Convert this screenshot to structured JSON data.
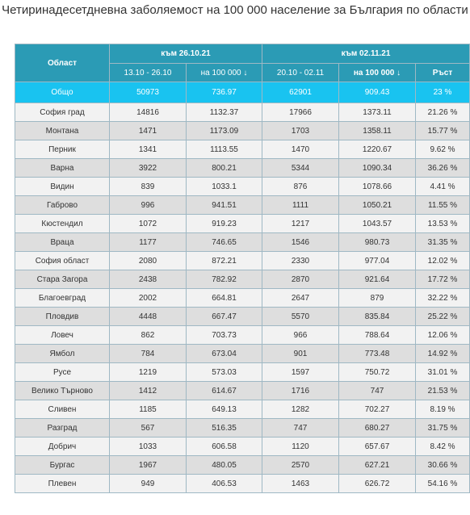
{
  "title": "Четиринадесетдневна заболяемост на 100 000 население за България по области",
  "chart_data": {
    "type": "table",
    "header": {
      "col_region": "Област",
      "group1": "към 26.10.21",
      "group2": "към 02.11.21",
      "sub1": "13.10 - 26.10",
      "sub2": "на 100 000 ↓",
      "sub3": "20.10 - 02.11",
      "sub4": "на 100 000 ↓",
      "sub5": "Ръст"
    },
    "total": {
      "name": "Общо",
      "cases1": "50973",
      "rate1": "736.97",
      "cases2": "62901",
      "rate2": "909.43",
      "growth": "23 %"
    },
    "rows": [
      [
        "София град",
        "14816",
        "1132.37",
        "17966",
        "1373.11",
        "21.26 %"
      ],
      [
        "Монтана",
        "1471",
        "1173.09",
        "1703",
        "1358.11",
        "15.77 %"
      ],
      [
        "Перник",
        "1341",
        "1113.55",
        "1470",
        "1220.67",
        "9.62 %"
      ],
      [
        "Варна",
        "3922",
        "800.21",
        "5344",
        "1090.34",
        "36.26 %"
      ],
      [
        "Видин",
        "839",
        "1033.1",
        "876",
        "1078.66",
        "4.41 %"
      ],
      [
        "Габрово",
        "996",
        "941.51",
        "1111",
        "1050.21",
        "11.55 %"
      ],
      [
        "Кюстендил",
        "1072",
        "919.23",
        "1217",
        "1043.57",
        "13.53 %"
      ],
      [
        "Враца",
        "1177",
        "746.65",
        "1546",
        "980.73",
        "31.35 %"
      ],
      [
        "София област",
        "2080",
        "872.21",
        "2330",
        "977.04",
        "12.02 %"
      ],
      [
        "Стара Загора",
        "2438",
        "782.92",
        "2870",
        "921.64",
        "17.72 %"
      ],
      [
        "Благоевград",
        "2002",
        "664.81",
        "2647",
        "879",
        "32.22 %"
      ],
      [
        "Пловдив",
        "4448",
        "667.47",
        "5570",
        "835.84",
        "25.22 %"
      ],
      [
        "Ловеч",
        "862",
        "703.73",
        "966",
        "788.64",
        "12.06 %"
      ],
      [
        "Ямбол",
        "784",
        "673.04",
        "901",
        "773.48",
        "14.92 %"
      ],
      [
        "Русе",
        "1219",
        "573.03",
        "1597",
        "750.72",
        "31.01 %"
      ],
      [
        "Велико Търново",
        "1412",
        "614.67",
        "1716",
        "747",
        "21.53 %"
      ],
      [
        "Сливен",
        "1185",
        "649.13",
        "1282",
        "702.27",
        "8.19 %"
      ],
      [
        "Разград",
        "567",
        "516.35",
        "747",
        "680.27",
        "31.75 %"
      ],
      [
        "Добрич",
        "1033",
        "606.58",
        "1120",
        "657.67",
        "8.42 %"
      ],
      [
        "Бургас",
        "1967",
        "480.05",
        "2570",
        "627.21",
        "30.66 %"
      ],
      [
        "Плевен",
        "949",
        "406.53",
        "1463",
        "626.72",
        "54.16 %"
      ]
    ]
  },
  "colors": {
    "header_bg": "#2b9bb5",
    "total_bg": "#19c3f0",
    "row_odd": "#f2f2f2",
    "row_even": "#dedede"
  }
}
